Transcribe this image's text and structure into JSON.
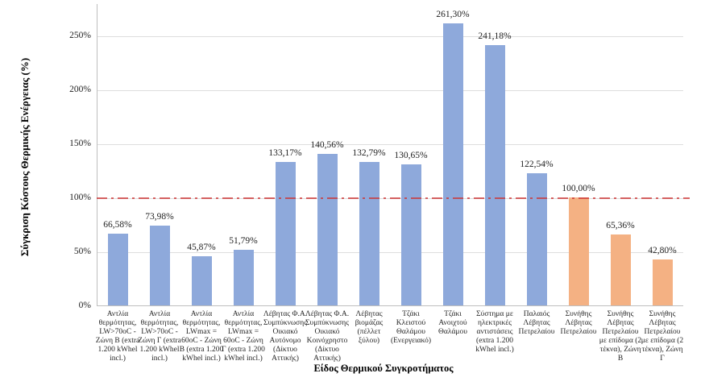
{
  "chart_data": {
    "type": "bar",
    "title": "",
    "xlabel": "Είδος Θερμικού Συγκροτήματος",
    "ylabel": "Σύγκριση Κόστους Θερμικής Ενέργειας (%)",
    "ylim": [
      0,
      280
    ],
    "ytick_interval": 50,
    "yticks": [
      0,
      50,
      100,
      150,
      200,
      250
    ],
    "ytick_labels": [
      "0%",
      "50%",
      "100%",
      "150%",
      "200%",
      "250%"
    ],
    "grid": "horizontal",
    "legend": "none",
    "categories": [
      "Αντλία θερμότητας, LW>70oC - Ζώνη Β (extra 1.200 kWhel incl.)",
      "Αντλία θερμότητας, LW>70oC - Ζώνη Γ (extra 1.200 kWhel incl.)",
      "Αντλία θερμότητας, LWmax = 60oC - Ζώνη Β (extra 1.200 kWhel incl.)",
      "Αντλία θερμότητας, LWmax = 60oC - Ζώνη Γ (extra 1.200 kWhel incl.)",
      "Λέβητας Φ.Α. Συμπύκνωσης Οικιακό Αυτόνομο (Δίκτυο Αττικής)",
      "Λέβητας Φ.Α. Συμπύκνωσης Οικιακό Κοινόχρηστο (Δίκτυο Αττικής)",
      "Λέβητας βιομάζας (πέλλετ ξύλου)",
      "Τζάκι Κλειστού Θαλάμου (Ενεργειακό)",
      "Τζάκι Ανοιχτού Θαλάμου",
      "Σύστημα με ηλεκτρικές αντιστάσεις (extra 1.200 kWhel incl.)",
      "Παλαιός Λέβητας Πετρελαίου",
      "Συνήθης Λέβητας Πετρελαίου",
      "Συνήθης Λέβητας Πετρελαίου με επίδομα (2 τέκνα), Ζώνη Β",
      "Συνήθης Λέβητας Πετρελαίου με επίδομα (2 τέκνα), Ζώνη Γ"
    ],
    "values": [
      66.58,
      73.98,
      45.87,
      51.79,
      133.17,
      140.56,
      132.79,
      130.65,
      261.3,
      241.18,
      122.54,
      100.0,
      65.36,
      42.8
    ],
    "value_labels": [
      "66,58%",
      "73,98%",
      "45,87%",
      "51,79%",
      "133,17%",
      "140,56%",
      "132,79%",
      "130,65%",
      "261,30%",
      "241,18%",
      "122,54%",
      "100,00%",
      "65,36%",
      "42,80%"
    ],
    "bar_colors": [
      "#8EA9DB",
      "#8EA9DB",
      "#8EA9DB",
      "#8EA9DB",
      "#8EA9DB",
      "#8EA9DB",
      "#8EA9DB",
      "#8EA9DB",
      "#8EA9DB",
      "#8EA9DB",
      "#8EA9DB",
      "#F4B183",
      "#F4B183",
      "#F4B183"
    ],
    "reference_line": {
      "value": 100,
      "color": "#CC3232",
      "style": "dash-dot"
    }
  },
  "colors": {
    "bar_blue": "#8EA9DB",
    "bar_orange": "#F4B183",
    "reference_red": "#CC3232"
  }
}
